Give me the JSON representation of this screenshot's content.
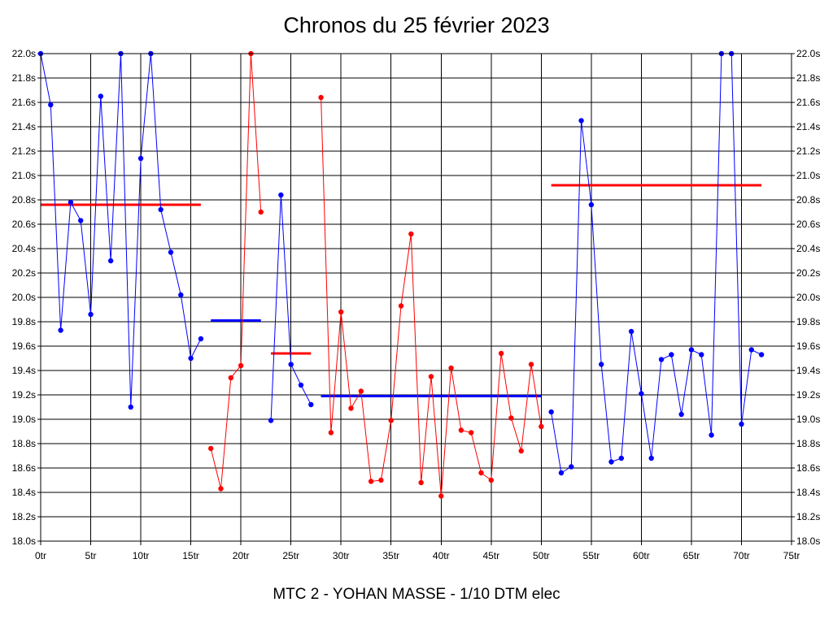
{
  "chart_data": {
    "type": "line",
    "title": "Chronos du 25 février 2023",
    "subtitle": "MTC 2 - YOHAN MASSE - 1/10 DTM elec",
    "xlim": [
      0,
      75
    ],
    "ylim": [
      18.0,
      22.0
    ],
    "x_tick_values": [
      0,
      5,
      10,
      15,
      20,
      25,
      30,
      35,
      40,
      45,
      50,
      55,
      60,
      65,
      70,
      75
    ],
    "x_tick_labels": [
      "0tr",
      "5tr",
      "10tr",
      "15tr",
      "20tr",
      "25tr",
      "30tr",
      "35tr",
      "40tr",
      "45tr",
      "50tr",
      "55tr",
      "60tr",
      "65tr",
      "70tr",
      "75tr"
    ],
    "y_tick_values": [
      18.0,
      18.2,
      18.4,
      18.6,
      18.8,
      19.0,
      19.2,
      19.4,
      19.6,
      19.8,
      20.0,
      20.2,
      20.4,
      20.6,
      20.8,
      21.0,
      21.2,
      21.4,
      21.6,
      21.8,
      22.0
    ],
    "y_tick_labels": [
      "18.0s",
      "18.2s",
      "18.4s",
      "18.6s",
      "18.8s",
      "19.0s",
      "19.2s",
      "19.4s",
      "19.6s",
      "19.8s",
      "20.0s",
      "20.2s",
      "20.4s",
      "20.6s",
      "20.8s",
      "21.0s",
      "21.2s",
      "21.4s",
      "21.6s",
      "21.8s",
      "22.0s"
    ],
    "grid": true,
    "colors": {
      "blue": "#0000ff",
      "red": "#ff0000",
      "grid": "#000000"
    },
    "series": [
      {
        "color": "#0000ff",
        "x": [
          0,
          1,
          2,
          3,
          4,
          5,
          6,
          7,
          8,
          9,
          10,
          11,
          12,
          13,
          14,
          15,
          16
        ],
        "y": [
          22.0,
          21.58,
          19.73,
          20.78,
          20.63,
          19.86,
          21.65,
          20.3,
          22.0,
          19.1,
          21.14,
          22.0,
          20.72,
          20.37,
          20.02,
          19.5,
          19.66
        ]
      },
      {
        "color": "#ff0000",
        "x": [
          17,
          18,
          19,
          20,
          21,
          22
        ],
        "y": [
          18.76,
          18.43,
          19.34,
          19.44,
          22.0,
          20.7
        ]
      },
      {
        "color": "#0000ff",
        "x": [
          23,
          24,
          25,
          26,
          27
        ],
        "y": [
          18.99,
          20.84,
          19.45,
          19.28,
          19.12
        ]
      },
      {
        "color": "#ff0000",
        "x": [
          28,
          29,
          30,
          31,
          32,
          33,
          34,
          35,
          36,
          37,
          38,
          39,
          40,
          41,
          42,
          43,
          44,
          45,
          46,
          47,
          48,
          49,
          50
        ],
        "y": [
          21.64,
          18.89,
          19.88,
          19.09,
          19.23,
          18.49,
          18.5,
          18.99,
          19.93,
          20.52,
          18.48,
          19.35,
          18.37,
          19.42,
          18.91,
          18.89,
          18.56,
          18.5,
          19.54,
          19.01,
          18.74,
          19.45,
          18.94
        ]
      },
      {
        "color": "#0000ff",
        "x": [
          51,
          52,
          53,
          54,
          55,
          56,
          57,
          58,
          59,
          60,
          61,
          62,
          63,
          64,
          65,
          66,
          67,
          68,
          69,
          70,
          71,
          72
        ],
        "y": [
          19.06,
          18.56,
          18.61,
          21.45,
          20.76,
          19.45,
          18.65,
          18.68,
          19.72,
          19.21,
          18.68,
          19.49,
          19.53,
          19.04,
          19.57,
          19.53,
          18.87,
          22.0,
          22.0,
          18.96,
          19.57,
          19.53
        ]
      }
    ],
    "averages": [
      {
        "color": "#ff0000",
        "x_start": 0,
        "x_end": 16,
        "y": 20.76
      },
      {
        "color": "#0000ff",
        "x_start": 17,
        "x_end": 22,
        "y": 19.81
      },
      {
        "color": "#ff0000",
        "x_start": 23,
        "x_end": 27,
        "y": 19.54
      },
      {
        "color": "#0000ff",
        "x_start": 28,
        "x_end": 50,
        "y": 19.19
      },
      {
        "color": "#ff0000",
        "x_start": 51,
        "x_end": 72,
        "y": 20.92
      }
    ]
  }
}
